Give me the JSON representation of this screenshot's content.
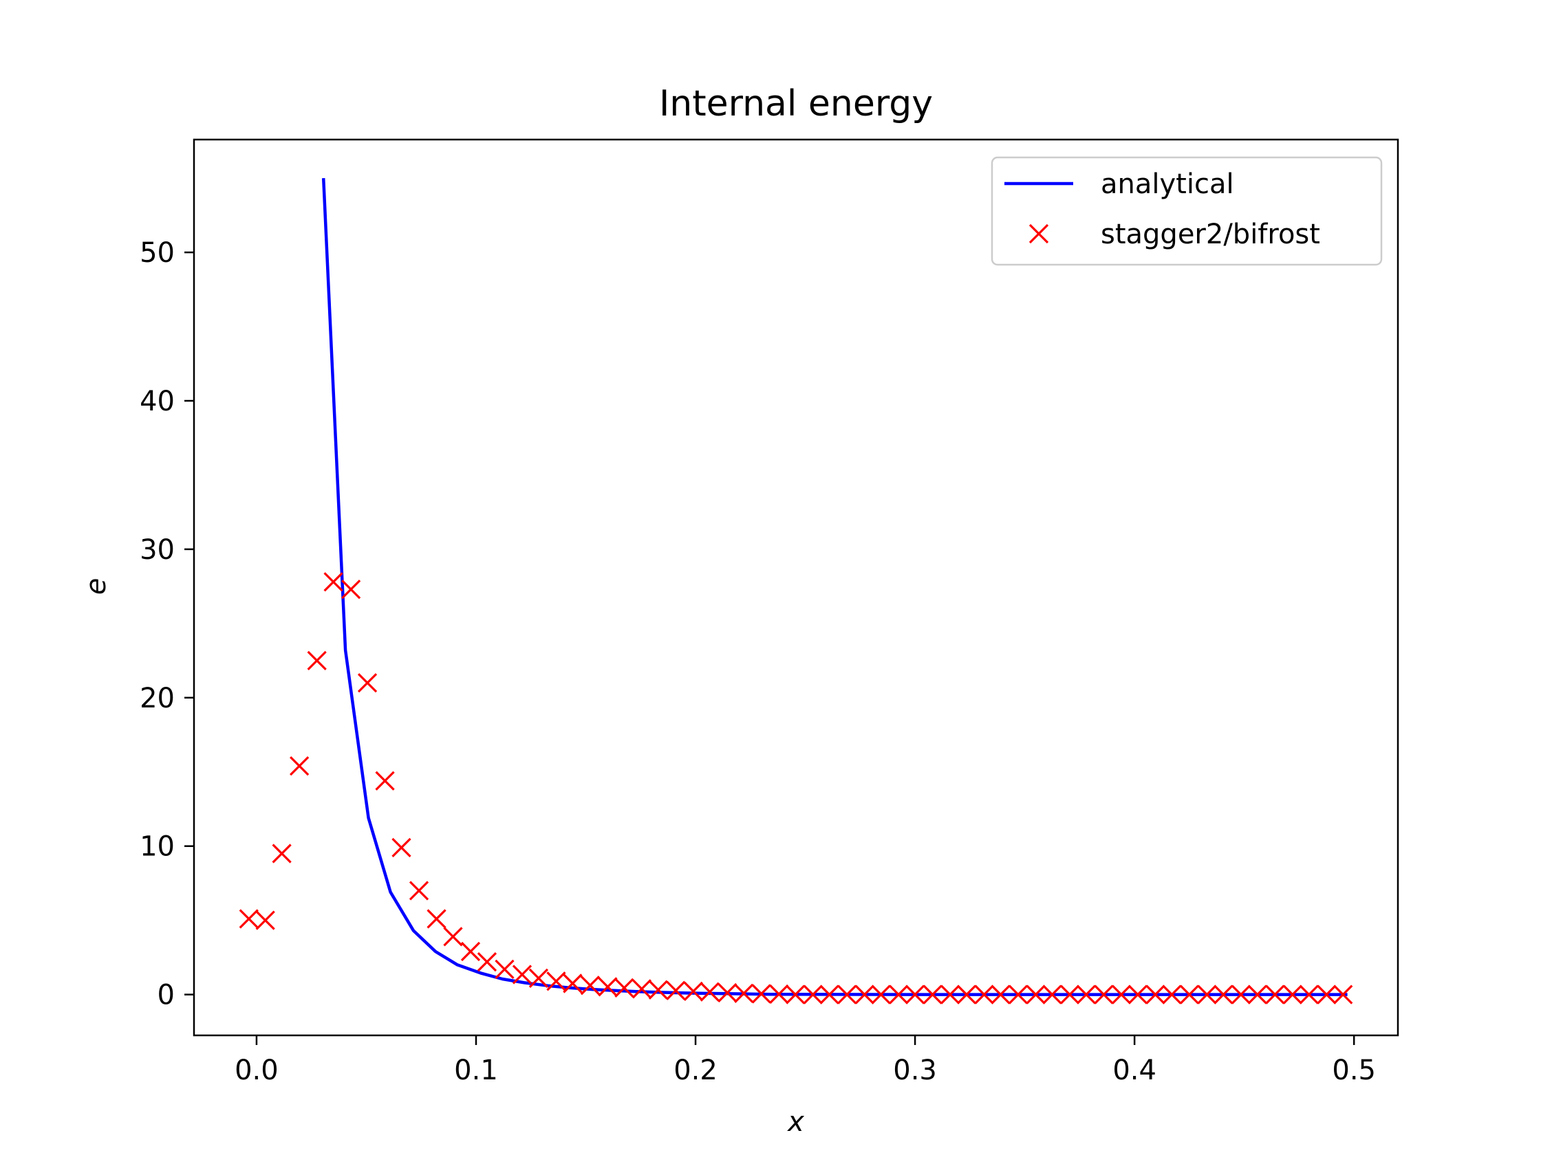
{
  "chart_data": {
    "type": "line",
    "title": "Internal energy",
    "xlabel": "x",
    "ylabel": "e",
    "xlim": [
      -0.0285,
      0.52
    ],
    "ylim": [
      -2.75,
      57.6
    ],
    "xticks": [
      0.0,
      0.1,
      0.2,
      0.3,
      0.4,
      0.5
    ],
    "xtick_labels": [
      "0.0",
      "0.1",
      "0.2",
      "0.3",
      "0.4",
      "0.5"
    ],
    "yticks": [
      0,
      10,
      20,
      30,
      40,
      50
    ],
    "ytick_labels": [
      "0",
      "10",
      "20",
      "30",
      "40",
      "50"
    ],
    "grid": false,
    "legend_position": "top-right",
    "colors": {
      "analytical": "#0000ff",
      "stagger2/bifrost": "#ff0000"
    },
    "series": [
      {
        "name": "analytical",
        "style": "line",
        "x": [
          0.0305,
          0.0405,
          0.051,
          0.061,
          0.0715,
          0.0815,
          0.0915,
          0.102,
          0.112,
          0.122,
          0.1325,
          0.143,
          0.153,
          0.163,
          0.173,
          0.1835,
          0.194,
          0.204,
          0.214,
          0.224,
          0.234,
          0.3,
          0.4,
          0.497
        ],
        "y": [
          55.0,
          23.2,
          11.9,
          6.9,
          4.3,
          2.9,
          2.0,
          1.45,
          1.05,
          0.8,
          0.6,
          0.45,
          0.35,
          0.27,
          0.2,
          0.15,
          0.11,
          0.08,
          0.06,
          0.04,
          0.02,
          0.0,
          0.0,
          0.0
        ]
      },
      {
        "name": "stagger2/bifrost",
        "style": "markers",
        "marker": "x",
        "x": [
          -0.0035,
          0.004,
          0.0115,
          0.0195,
          0.0275,
          0.035,
          0.043,
          0.0505,
          0.0585,
          0.066,
          0.074,
          0.082,
          0.0895,
          0.0975,
          0.105,
          0.113,
          0.121,
          0.1285,
          0.1365,
          0.144,
          0.152,
          0.16,
          0.1675,
          0.1755,
          0.183,
          0.191,
          0.199,
          0.2065,
          0.2145,
          0.222,
          0.23,
          0.238,
          0.2455,
          0.2535,
          0.261,
          0.269,
          0.277,
          0.2845,
          0.2925,
          0.3,
          0.308,
          0.316,
          0.3235,
          0.3315,
          0.339,
          0.347,
          0.355,
          0.3625,
          0.3705,
          0.378,
          0.386,
          0.394,
          0.4015,
          0.4095,
          0.417,
          0.425,
          0.433,
          0.4405,
          0.4485,
          0.456,
          0.464,
          0.472,
          0.4795,
          0.4875,
          0.495
        ],
        "y": [
          5.1,
          5.0,
          9.5,
          15.4,
          22.5,
          27.8,
          27.3,
          21.0,
          14.4,
          9.9,
          7.0,
          5.1,
          3.9,
          2.9,
          2.2,
          1.7,
          1.35,
          1.1,
          0.9,
          0.75,
          0.62,
          0.52,
          0.45,
          0.38,
          0.32,
          0.27,
          0.22,
          0.18,
          0.12,
          0.08,
          0.05,
          0.03,
          0.0,
          0.0,
          0.0,
          0.0,
          0.0,
          0.0,
          0.0,
          0.0,
          0.0,
          0.0,
          0.0,
          0.0,
          0.0,
          0.0,
          0.0,
          0.0,
          0.0,
          0.0,
          0.0,
          0.0,
          0.0,
          0.0,
          0.0,
          0.0,
          0.0,
          0.0,
          0.0,
          0.0,
          0.0,
          0.0,
          0.0,
          0.0,
          0.0
        ]
      }
    ]
  }
}
